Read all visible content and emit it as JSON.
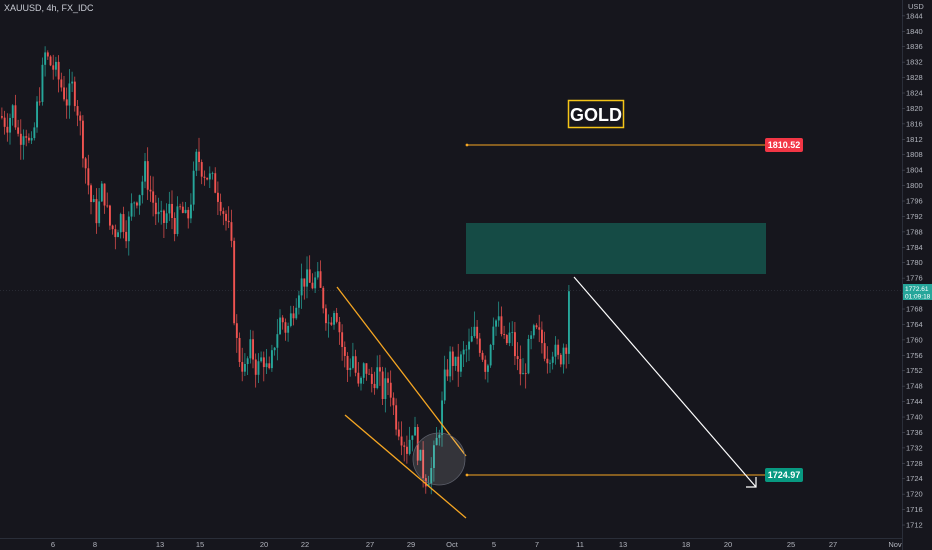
{
  "header": {
    "symbol": "XAUUSD, 4h, FX_IDC"
  },
  "annotation": {
    "title": "GOLD"
  },
  "colors": {
    "up": "#26a69a",
    "down": "#ef5350",
    "pattern": "#f5a623",
    "zone": "#154b45",
    "arrow": "#ffffff"
  },
  "chart_data": {
    "type": "candlestick",
    "instrument": "XAUUSD",
    "timeframe": "4h",
    "currency": "USD",
    "ylim": [
      1710,
      1846
    ],
    "yticks": [
      1712,
      1716,
      1720,
      1724,
      1728,
      1732,
      1736,
      1740,
      1744,
      1748,
      1752,
      1756,
      1760,
      1764,
      1768,
      1772,
      1776,
      1780,
      1784,
      1788,
      1792,
      1796,
      1800,
      1804,
      1808,
      1812,
      1816,
      1820,
      1824,
      1828,
      1832,
      1836,
      1840,
      1844
    ],
    "xticks": [
      "6",
      "8",
      "13",
      "15",
      "20",
      "22",
      "27",
      "29",
      "Oct",
      "5",
      "7",
      "11",
      "13",
      "18",
      "20",
      "25",
      "27",
      "Nov"
    ],
    "path": [
      [
        0,
        1818
      ],
      [
        6,
        1816
      ],
      [
        12,
        1820
      ],
      [
        18,
        1812
      ],
      [
        24,
        1816
      ],
      [
        30,
        1808
      ],
      [
        36,
        1820
      ],
      [
        40,
        1826
      ],
      [
        44,
        1834
      ],
      [
        48,
        1832
      ],
      [
        54,
        1830
      ],
      [
        60,
        1826
      ],
      [
        66,
        1822
      ],
      [
        72,
        1826
      ],
      [
        78,
        1818
      ],
      [
        84,
        1806
      ],
      [
        90,
        1796
      ],
      [
        96,
        1792
      ],
      [
        102,
        1800
      ],
      [
        108,
        1790
      ],
      [
        114,
        1788
      ],
      [
        120,
        1792
      ],
      [
        126,
        1788
      ],
      [
        132,
        1796
      ],
      [
        138,
        1798
      ],
      [
        144,
        1804
      ],
      [
        150,
        1798
      ],
      [
        156,
        1792
      ],
      [
        162,
        1790
      ],
      [
        168,
        1794
      ],
      [
        174,
        1790
      ],
      [
        180,
        1794
      ],
      [
        186,
        1790
      ],
      [
        192,
        1800
      ],
      [
        196,
        1808
      ],
      [
        202,
        1804
      ],
      [
        208,
        1802
      ],
      [
        214,
        1800
      ],
      [
        220,
        1796
      ],
      [
        226,
        1790
      ],
      [
        230,
        1786
      ],
      [
        234,
        1762
      ],
      [
        238,
        1756
      ],
      [
        244,
        1752
      ],
      [
        250,
        1758
      ],
      [
        256,
        1752
      ],
      [
        262,
        1756
      ],
      [
        268,
        1750
      ],
      [
        274,
        1760
      ],
      [
        280,
        1766
      ],
      [
        286,
        1762
      ],
      [
        292,
        1768
      ],
      [
        298,
        1774
      ],
      [
        304,
        1776
      ],
      [
        310,
        1774
      ],
      [
        316,
        1776
      ],
      [
        322,
        1770
      ],
      [
        328,
        1764
      ],
      [
        334,
        1770
      ],
      [
        340,
        1760
      ],
      [
        346,
        1752
      ],
      [
        352,
        1756
      ],
      [
        358,
        1746
      ],
      [
        364,
        1754
      ],
      [
        370,
        1748
      ],
      [
        376,
        1752
      ],
      [
        382,
        1746
      ],
      [
        388,
        1750
      ],
      [
        394,
        1740
      ],
      [
        400,
        1736
      ],
      [
        406,
        1732
      ],
      [
        412,
        1738
      ],
      [
        418,
        1730
      ],
      [
        424,
        1724
      ],
      [
        430,
        1726
      ],
      [
        436,
        1734
      ],
      [
        440,
        1740
      ],
      [
        444,
        1750
      ],
      [
        450,
        1756
      ],
      [
        456,
        1752
      ],
      [
        462,
        1756
      ],
      [
        468,
        1758
      ],
      [
        474,
        1762
      ],
      [
        480,
        1758
      ],
      [
        486,
        1752
      ],
      [
        492,
        1766
      ],
      [
        498,
        1764
      ],
      [
        504,
        1758
      ],
      [
        510,
        1762
      ],
      [
        516,
        1754
      ],
      [
        522,
        1750
      ],
      [
        528,
        1758
      ],
      [
        534,
        1762
      ],
      [
        540,
        1760
      ],
      [
        546,
        1756
      ],
      [
        552,
        1758
      ],
      [
        558,
        1754
      ],
      [
        564,
        1760
      ],
      [
        568,
        1758
      ],
      [
        571,
        1774
      ]
    ],
    "levels": [
      {
        "label": "1810.52",
        "value": 1810.52,
        "color": "#f23645"
      },
      {
        "label": "1724.97",
        "value": 1724.97,
        "color": "#089981"
      }
    ],
    "current_price": {
      "label": "1772.61",
      "countdown": "01:09:18",
      "value": 1772.61
    },
    "zone": {
      "from": 1777,
      "to": 1790
    },
    "grid": false
  }
}
